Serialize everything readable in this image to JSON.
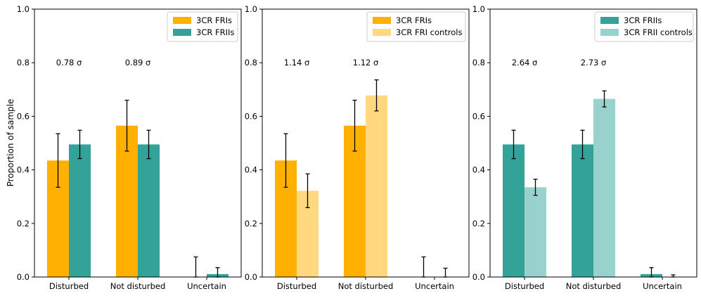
{
  "ylabel": "Proportion of sample",
  "chart_data": [
    {
      "type": "bar",
      "categories": [
        "Disturbed",
        "Not disturbed",
        "Uncertain"
      ],
      "ylim": [
        0,
        1
      ],
      "yticks": [
        "0.0",
        "0.2",
        "0.4",
        "0.6",
        "0.8",
        "1.0"
      ],
      "legend_position": "top-right",
      "series": [
        {
          "name": "3CR FRIs",
          "color": "#FFB000",
          "values": [
            0.435,
            0.565,
            0.0
          ],
          "err": [
            0.1,
            0.095,
            0.075
          ]
        },
        {
          "name": "3CR FRIIs",
          "color": "#33A39A",
          "values": [
            0.495,
            0.495,
            0.011
          ],
          "err": [
            0.053,
            0.053,
            0.024
          ]
        }
      ],
      "annotations": [
        {
          "category": 0,
          "y": 0.8,
          "text": "0.78 σ"
        },
        {
          "category": 1,
          "y": 0.8,
          "text": "0.89 σ"
        }
      ]
    },
    {
      "type": "bar",
      "categories": [
        "Disturbed",
        "Not disturbed",
        "Uncertain"
      ],
      "ylim": [
        0,
        1
      ],
      "yticks": [
        "0.0",
        "0.2",
        "0.4",
        "0.6",
        "0.8",
        "1.0"
      ],
      "legend_position": "top-right",
      "series": [
        {
          "name": "3CR FRIs",
          "color": "#FFB000",
          "values": [
            0.435,
            0.565,
            0.0
          ],
          "err": [
            0.1,
            0.095,
            0.075
          ]
        },
        {
          "name": "3CR FRI controls",
          "color": "#FFD880",
          "values": [
            0.322,
            0.678,
            0.0
          ],
          "err": [
            0.063,
            0.058,
            0.033
          ]
        }
      ],
      "annotations": [
        {
          "category": 0,
          "y": 0.8,
          "text": "1.14 σ"
        },
        {
          "category": 1,
          "y": 0.8,
          "text": "1.12 σ"
        }
      ]
    },
    {
      "type": "bar",
      "categories": [
        "Disturbed",
        "Not disturbed",
        "Uncertain"
      ],
      "ylim": [
        0,
        1
      ],
      "yticks": [
        "0.0",
        "0.2",
        "0.4",
        "0.6",
        "0.8",
        "1.0"
      ],
      "legend_position": "top-right",
      "series": [
        {
          "name": "3CR FRIIs",
          "color": "#33A39A",
          "values": [
            0.495,
            0.495,
            0.011
          ],
          "err": [
            0.053,
            0.053,
            0.024
          ]
        },
        {
          "name": "3CR FRII controls",
          "color": "#99D1CC",
          "values": [
            0.335,
            0.665,
            0.0
          ],
          "err": [
            0.03,
            0.03,
            0.008
          ]
        }
      ],
      "annotations": [
        {
          "category": 0,
          "y": 0.8,
          "text": "2.64 σ"
        },
        {
          "category": 1,
          "y": 0.8,
          "text": "2.73 σ"
        }
      ]
    }
  ]
}
